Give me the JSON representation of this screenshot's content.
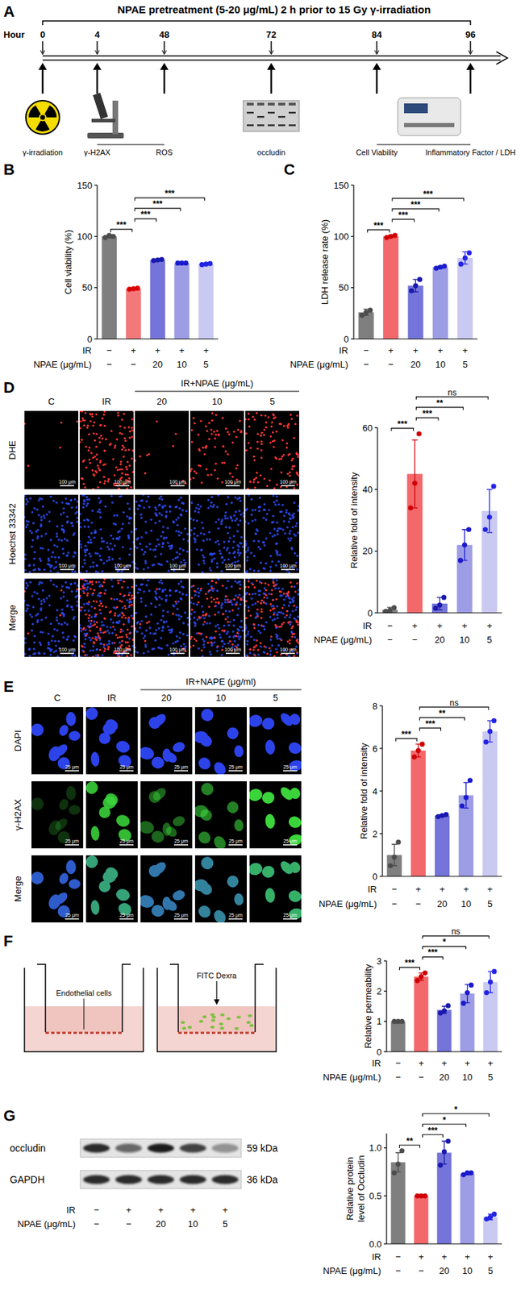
{
  "chart_data": [
    {
      "type": "bar",
      "y_label": "Cell viability (%)",
      "categories": [
        null,
        null,
        null,
        null,
        null
      ],
      "values": [
        100,
        49,
        77,
        74,
        73
      ],
      "errors": [
        1.5,
        0.8,
        0.8,
        0.5,
        0.8
      ],
      "replicates": [
        [
          99,
          101,
          100
        ],
        [
          48.5,
          49,
          49.5
        ],
        [
          76.5,
          77,
          77.5
        ],
        [
          74,
          74,
          74
        ],
        [
          72.5,
          73,
          73.5
        ]
      ],
      "colors": [
        "#7f7f7f",
        "#f3787a",
        "#7474da",
        "#9d9de6",
        "#c9c9f2"
      ],
      "ylim": [
        0,
        150
      ],
      "yticks": [
        0,
        50,
        100,
        150
      ],
      "condition_rows": [
        {
          "label": "IR",
          "values": [
            "−",
            "+",
            "+",
            "+",
            "+"
          ]
        },
        {
          "label": "NPAE (μg/mL)",
          "values": [
            "−",
            "−",
            "20",
            "10",
            "5"
          ]
        }
      ],
      "annotations": [
        {
          "from": 0,
          "to": 1,
          "text": "***"
        },
        {
          "from": 1,
          "to": 2,
          "text": "***"
        },
        {
          "from": 1,
          "to": 3,
          "text": "***"
        },
        {
          "from": 1,
          "to": 4,
          "text": "***"
        }
      ]
    },
    {
      "type": "bar",
      "y_label": "LDH release rate (%)",
      "categories": [
        null,
        null,
        null,
        null,
        null
      ],
      "values": [
        26,
        100,
        52,
        70,
        79
      ],
      "errors": [
        3,
        1,
        6,
        1,
        6
      ],
      "replicates": [
        [
          23,
          26,
          28
        ],
        [
          99,
          100,
          101
        ],
        [
          47,
          52,
          58
        ],
        [
          69,
          70,
          71
        ],
        [
          73,
          79,
          84
        ]
      ],
      "colors": [
        "#7f7f7f",
        "#f3686b",
        "#7474da",
        "#9d9de6",
        "#c9c9f2"
      ],
      "ylim": [
        0,
        150
      ],
      "yticks": [
        0,
        50,
        100,
        150
      ],
      "condition_rows": [
        {
          "label": "IR",
          "values": [
            "−",
            "+",
            "+",
            "+",
            "+"
          ]
        },
        {
          "label": "NPAE (μg/mL)",
          "values": [
            "−",
            "−",
            "20",
            "10",
            "5"
          ]
        }
      ],
      "annotations": [
        {
          "from": 0,
          "to": 1,
          "text": "***"
        },
        {
          "from": 1,
          "to": 2,
          "text": "***"
        },
        {
          "from": 1,
          "to": 3,
          "text": "***"
        },
        {
          "from": 1,
          "to": 4,
          "text": "***"
        }
      ]
    },
    {
      "type": "bar",
      "y_label": "Relative fold of intensity",
      "categories": [
        null,
        null,
        null,
        null,
        null
      ],
      "values": [
        1,
        45,
        3,
        22,
        33
      ],
      "errors": [
        0.8,
        11,
        2,
        5,
        7
      ],
      "replicates": [
        [
          0.5,
          0.8,
          1.7
        ],
        [
          34,
          42,
          58
        ],
        [
          1.5,
          2.5,
          5
        ],
        [
          17,
          22,
          27
        ],
        [
          27,
          31,
          41
        ]
      ],
      "colors": [
        "#7f7f7f",
        "#f3686b",
        "#7474da",
        "#9d9de6",
        "#c9c9f2"
      ],
      "ylim": [
        0,
        60
      ],
      "yticks": [
        0,
        20,
        40,
        60
      ],
      "condition_rows": [
        {
          "label": "IR",
          "values": [
            "−",
            "+",
            "+",
            "+",
            "+"
          ]
        },
        {
          "label": "NPAE (μg/mL)",
          "values": [
            "−",
            "−",
            "20",
            "10",
            "5"
          ]
        }
      ],
      "annotations": [
        {
          "from": 0,
          "to": 1,
          "text": "***"
        },
        {
          "from": 1,
          "to": 2,
          "text": "***"
        },
        {
          "from": 1,
          "to": 3,
          "text": "**"
        },
        {
          "from": 1,
          "to": 4,
          "text": "ns"
        }
      ]
    },
    {
      "type": "bar",
      "y_label": "Relative fold of intensity",
      "categories": [
        null,
        null,
        null,
        null,
        null
      ],
      "values": [
        1,
        5.9,
        2.85,
        3.8,
        6.8
      ],
      "errors": [
        0.5,
        0.3,
        0.05,
        0.6,
        0.5
      ],
      "replicates": [
        [
          0.5,
          0.9,
          1.6
        ],
        [
          5.6,
          5.9,
          6.2
        ],
        [
          2.8,
          2.85,
          2.9
        ],
        [
          3.3,
          3.7,
          4.5
        ],
        [
          6.3,
          6.8,
          7.3
        ]
      ],
      "colors": [
        "#7f7f7f",
        "#f3686b",
        "#7474da",
        "#9d9de6",
        "#c9c9f2"
      ],
      "ylim": [
        0,
        8
      ],
      "yticks": [
        0,
        2,
        4,
        6,
        8
      ],
      "condition_rows": [
        {
          "label": "IR",
          "values": [
            "−",
            "+",
            "+",
            "+",
            "+"
          ]
        },
        {
          "label": "NPAE (μg/mL)",
          "values": [
            "−",
            "−",
            "20",
            "10",
            "5"
          ]
        }
      ],
      "annotations": [
        {
          "from": 0,
          "to": 1,
          "text": "***"
        },
        {
          "from": 1,
          "to": 2,
          "text": "***"
        },
        {
          "from": 1,
          "to": 3,
          "text": "**"
        },
        {
          "from": 1,
          "to": 4,
          "text": "ns"
        }
      ]
    },
    {
      "type": "bar",
      "y_label": "Relative permeability",
      "categories": [
        null,
        null,
        null,
        null,
        null
      ],
      "values": [
        1,
        2.48,
        1.38,
        1.92,
        2.3
      ],
      "errors": [
        0.01,
        0.12,
        0.12,
        0.3,
        0.35
      ],
      "replicates": [
        [
          1,
          1,
          1
        ],
        [
          2.35,
          2.48,
          2.6
        ],
        [
          1.28,
          1.35,
          1.52
        ],
        [
          1.6,
          1.95,
          2.2
        ],
        [
          1.95,
          2.3,
          2.65
        ]
      ],
      "colors": [
        "#7f7f7f",
        "#f3686b",
        "#7474da",
        "#9d9de6",
        "#c9c9f2"
      ],
      "ylim": [
        0,
        3
      ],
      "yticks": [
        0,
        1,
        2,
        3
      ],
      "condition_rows": [
        {
          "label": "IR",
          "values": [
            "−",
            "+",
            "+",
            "+",
            "+"
          ]
        },
        {
          "label": "NPAE (μg/mL)",
          "values": [
            "−",
            "−",
            "20",
            "10",
            "5"
          ]
        }
      ],
      "annotations": [
        {
          "from": 0,
          "to": 1,
          "text": "***"
        },
        {
          "from": 1,
          "to": 2,
          "text": "***"
        },
        {
          "from": 1,
          "to": 3,
          "text": "*"
        },
        {
          "from": 1,
          "to": 4,
          "text": "ns"
        }
      ]
    },
    {
      "type": "bar",
      "y_label": "Relative protein level of Occludin",
      "categories": [
        null,
        null,
        null,
        null,
        null
      ],
      "values": [
        0.85,
        0.5,
        0.95,
        0.73,
        0.28
      ],
      "errors": [
        0.1,
        0.005,
        0.12,
        0.01,
        0.03
      ],
      "replicates": [
        [
          0.74,
          0.83,
          0.97
        ],
        [
          0.5,
          0.5,
          0.5
        ],
        [
          0.82,
          0.96,
          1.07
        ],
        [
          0.72,
          0.74,
          0.74
        ],
        [
          0.26,
          0.28,
          0.31
        ]
      ],
      "colors": [
        "#7f7f7f",
        "#f3686b",
        "#7474da",
        "#9d9de6",
        "#c9c9f2"
      ],
      "ylim": [
        0,
        1.15
      ],
      "yticks": [
        {
          "value": 0,
          "label": "0.0"
        },
        0.5,
        {
          "value": 1,
          "label": "1.0"
        }
      ],
      "condition_rows": [
        {
          "label": "IR",
          "values": [
            "−",
            "+",
            "+",
            "+",
            "+"
          ]
        },
        {
          "label": "NPAE (μg/mL)",
          "values": [
            "−",
            "−",
            "20",
            "10",
            "5"
          ]
        }
      ],
      "annotations": [
        {
          "from": 0,
          "to": 1,
          "text": "**"
        },
        {
          "from": 1,
          "to": 2,
          "text": "***"
        },
        {
          "from": 1,
          "to": 3,
          "text": "*"
        },
        {
          "from": 1,
          "to": 4,
          "text": "*"
        }
      ]
    }
  ],
  "panel_labels": [
    "A",
    "B",
    "C",
    "D",
    "E",
    "F",
    "G"
  ],
  "timeline": {
    "title": "NPAE pretreatment (5-20 μg/mL) 2 h prior to 15 Gy γ-irradiation",
    "axis_label": "Hour",
    "ticks": [
      0,
      4,
      48,
      72,
      84,
      96
    ],
    "events": [
      {
        "hour": 0,
        "label": "γ-irradiation"
      },
      {
        "hour": 4,
        "label": "γ-H2AX"
      },
      {
        "hour": 48,
        "label": "ROS"
      },
      {
        "hour": 72,
        "label": "occludin"
      },
      {
        "hour": 84,
        "label": "Cell Viability"
      },
      {
        "hour": 96,
        "label": "Inflammatory Factor / LDH"
      }
    ],
    "brackets": [
      [
        4,
        48
      ],
      [
        84,
        96
      ]
    ]
  },
  "image_panels": [
    {
      "header": "IR+NPAE (μg/mL)",
      "columns": [
        "C",
        "IR",
        "20",
        "10",
        "5"
      ],
      "rows": [
        "DHE",
        "Hoechst 33342",
        "Merge"
      ],
      "scale_bar": "100 μm"
    },
    {
      "header": "IR+NAPE (μg/ml)",
      "columns": [
        "C",
        "IR",
        "20",
        "10",
        "5"
      ],
      "rows": [
        "DAPI",
        "γ-H2AX",
        "Merge"
      ],
      "scale_bar": "25 μm"
    }
  ],
  "permeability_diagram": {
    "labels": [
      "Endothelial cells",
      "FITC Dexra"
    ]
  },
  "western_blot": {
    "bands": [
      {
        "name": "occludin",
        "size": "59 kDa"
      },
      {
        "name": "GAPDH",
        "size": "36 kDa"
      }
    ],
    "condition_rows": [
      {
        "label": "IR",
        "values": [
          "−",
          "+",
          "+",
          "+",
          "+"
        ]
      },
      {
        "label": "NPAE (μg/mL)",
        "values": [
          "−",
          "−",
          "20",
          "10",
          "5"
        ]
      }
    ]
  }
}
